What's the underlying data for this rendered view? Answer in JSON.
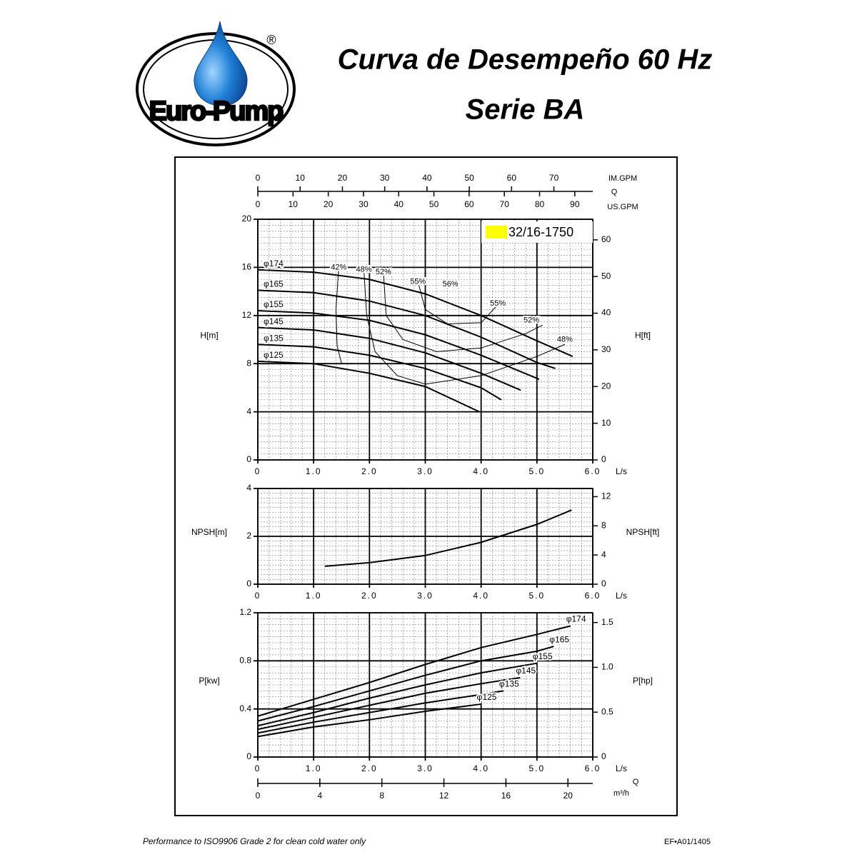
{
  "header": {
    "logo": {
      "text": "Euro-Pump",
      "registered": "®"
    },
    "title": "Curva de Desempeño 60 Hz",
    "subtitle": "Serie BA"
  },
  "footer": {
    "note": "Performance to ISO9906 Grade 2 for clean cold water only",
    "code": "EF•A01/1405"
  },
  "chart_data": [
    {
      "type": "line",
      "ylabel": "H[m]",
      "y2label": "H[ft]",
      "xlabel": "L/s",
      "xlim": [
        0,
        6
      ],
      "xticks": [
        0,
        {
          "value": 1,
          "label": "1.0"
        },
        {
          "value": 2,
          "label": "2.0"
        },
        {
          "value": 3,
          "label": "3.0"
        },
        {
          "value": 4,
          "label": "4.0"
        },
        {
          "value": 5,
          "label": "5.0"
        },
        {
          "value": 6,
          "label": "6.0"
        }
      ],
      "ylim": [
        0,
        20
      ],
      "yticks": [
        0,
        4,
        8,
        12,
        16,
        20
      ],
      "y2lim": [
        0,
        65.62
      ],
      "y2ticks": [
        0,
        10,
        20,
        30,
        40,
        50,
        60
      ],
      "grid": true,
      "legend": "32/16-1750",
      "legend_color": "#ffff00",
      "top_axis_label": "Q",
      "top_axes": [
        {
          "name": "IM.GPM",
          "side": "top",
          "xlim": [
            0,
            79.19
          ],
          "xticks": [
            0,
            10,
            20,
            30,
            40,
            50,
            60,
            70
          ]
        },
        {
          "name": "US.GPM",
          "side": "bottom",
          "xlim": [
            0,
            95.1
          ],
          "xticks": [
            0,
            10,
            20,
            30,
            40,
            50,
            60,
            70,
            80,
            90
          ]
        }
      ],
      "series": [
        {
          "name": "φ174",
          "color": "#000000",
          "x": [
            0,
            1,
            2,
            3,
            4,
            5,
            5.64
          ],
          "values": [
            15.8,
            15.6,
            15.0,
            13.8,
            12.0,
            9.9,
            8.6
          ]
        },
        {
          "name": "φ165",
          "color": "#000000",
          "x": [
            0,
            1,
            2,
            3,
            4,
            5,
            5.33
          ],
          "values": [
            14.1,
            13.9,
            13.2,
            12.0,
            10.2,
            8.1,
            7.6
          ]
        },
        {
          "name": "φ155",
          "color": "#000000",
          "x": [
            0,
            1,
            2,
            3,
            4,
            5.04
          ],
          "values": [
            12.4,
            12.2,
            11.6,
            10.4,
            8.7,
            6.7
          ]
        },
        {
          "name": "φ145",
          "color": "#000000",
          "x": [
            0,
            1,
            2,
            3,
            4,
            4.71
          ],
          "values": [
            11.0,
            10.8,
            10.1,
            8.9,
            7.2,
            5.8
          ]
        },
        {
          "name": "φ135",
          "color": "#000000",
          "x": [
            0,
            1,
            2,
            3,
            4,
            4.36
          ],
          "values": [
            9.6,
            9.4,
            8.7,
            7.6,
            6.0,
            5.0
          ]
        },
        {
          "name": "φ125",
          "color": "#000000",
          "x": [
            0,
            1,
            2,
            3,
            3.97
          ],
          "values": [
            8.2,
            8.0,
            7.2,
            6.1,
            4.0
          ]
        }
      ],
      "efficiency": [
        {
          "name": "42%",
          "x": [
            1.45,
            1.4,
            1.42,
            1.5
          ],
          "values": [
            16.0,
            12.5,
            9.5,
            8.0
          ]
        },
        {
          "name": "48%",
          "x": [
            1.9,
            1.95,
            2.1,
            2.5,
            3.0,
            4.0,
            5.0,
            5.5
          ],
          "values": [
            15.8,
            12.0,
            9.0,
            7.0,
            6.3,
            7.0,
            8.6,
            9.6
          ]
        },
        {
          "name": "52%",
          "x": [
            2.25,
            2.3,
            2.6,
            3.2,
            4.0,
            4.8,
            5.1
          ],
          "values": [
            15.6,
            12.0,
            10.0,
            9.0,
            9.3,
            10.5,
            11.2
          ]
        },
        {
          "name": "55%",
          "x": [
            2.87,
            3.0,
            3.4,
            4.0,
            4.3
          ],
          "values": [
            14.8,
            12.5,
            11.3,
            11.4,
            12.9
          ]
        }
      ],
      "annotations": [
        {
          "text": "56%",
          "x": 3.45,
          "y": 14.6
        },
        {
          "text": "55%",
          "x": 4.3,
          "y": 13.0
        },
        {
          "text": "52%",
          "x": 4.9,
          "y": 11.6
        },
        {
          "text": "48%",
          "x": 5.5,
          "y": 10.0
        }
      ]
    },
    {
      "type": "line",
      "ylabel": "NPSH[m]",
      "y2label": "NPSH[ft]",
      "xlabel": "L/s",
      "xlim": [
        0,
        6
      ],
      "xticks": [
        0,
        {
          "value": 1,
          "label": "1.0"
        },
        {
          "value": 2,
          "label": "2.0"
        },
        {
          "value": 3,
          "label": "3.0"
        },
        {
          "value": 4,
          "label": "4.0"
        },
        {
          "value": 5,
          "label": "5.0"
        },
        {
          "value": 6,
          "label": "6.0"
        }
      ],
      "ylim": [
        0,
        4
      ],
      "yticks": [
        0,
        2,
        4
      ],
      "y2lim": [
        0,
        13.12
      ],
      "y2ticks": [
        0,
        4,
        8,
        12
      ],
      "grid": true,
      "series": [
        {
          "color": "#000000",
          "x": [
            1.2,
            2.0,
            3.0,
            4.0,
            5.0,
            5.62
          ],
          "values": [
            0.75,
            0.9,
            1.2,
            1.75,
            2.5,
            3.1
          ]
        }
      ]
    },
    {
      "type": "line",
      "ylabel": "P[kw]",
      "y2label": "P[hp]",
      "xlabel": "L/s",
      "xlim": [
        0,
        6
      ],
      "xticks": [
        0,
        {
          "value": 1,
          "label": "1.0"
        },
        {
          "value": 2,
          "label": "2.0"
        },
        {
          "value": 3,
          "label": "3.0"
        },
        {
          "value": 4,
          "label": "4.0"
        },
        {
          "value": 5,
          "label": "5.0"
        },
        {
          "value": 6,
          "label": "6.0"
        }
      ],
      "ylim": [
        0,
        1.2
      ],
      "yticks": [
        0,
        0.4,
        0.8,
        1.2
      ],
      "y2lim": [
        0,
        1.609
      ],
      "y2ticks": [
        0,
        0.5,
        {
          "value": 1,
          "label": "1.0"
        },
        1.5
      ],
      "grid": true,
      "bottom_axis": {
        "name": "m³/h",
        "label": "Q",
        "xlim": [
          0,
          21.6
        ],
        "xticks": [
          0,
          4,
          8,
          12,
          16,
          20
        ]
      },
      "series": [
        {
          "name": "φ174",
          "color": "#000000",
          "x": [
            0,
            1,
            2,
            3,
            4,
            5,
            5.6
          ],
          "values": [
            0.34,
            0.48,
            0.62,
            0.77,
            0.91,
            1.02,
            1.09
          ]
        },
        {
          "name": "φ165",
          "color": "#000000",
          "x": [
            0,
            1,
            2,
            3,
            4,
            5,
            5.3
          ],
          "values": [
            0.3,
            0.42,
            0.55,
            0.68,
            0.8,
            0.88,
            0.92
          ]
        },
        {
          "name": "φ155",
          "color": "#000000",
          "x": [
            0,
            1,
            2,
            3,
            4,
            5
          ],
          "values": [
            0.26,
            0.37,
            0.49,
            0.6,
            0.7,
            0.78
          ]
        },
        {
          "name": "φ145",
          "color": "#000000",
          "x": [
            0,
            1,
            2,
            3,
            4,
            4.7
          ],
          "values": [
            0.23,
            0.33,
            0.43,
            0.53,
            0.61,
            0.66
          ]
        },
        {
          "name": "φ135",
          "color": "#000000",
          "x": [
            0,
            1,
            2,
            3,
            4,
            4.4
          ],
          "values": [
            0.2,
            0.29,
            0.37,
            0.45,
            0.52,
            0.55
          ]
        },
        {
          "name": "φ125",
          "color": "#000000",
          "x": [
            0,
            1,
            2,
            3,
            4
          ],
          "values": [
            0.17,
            0.25,
            0.31,
            0.38,
            0.44
          ]
        }
      ]
    }
  ]
}
